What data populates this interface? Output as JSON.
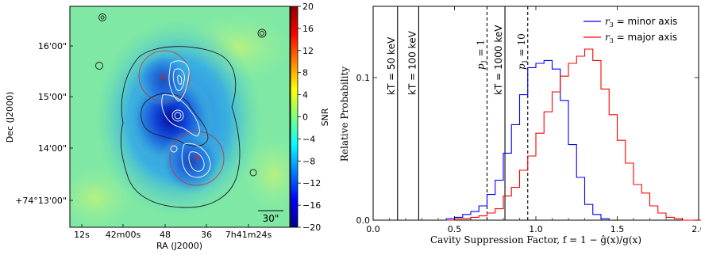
{
  "chart_data": [
    {
      "type": "heatmap",
      "colorbar_label": "SNR",
      "colorbar_ticks": [
        20,
        16,
        12,
        8,
        4,
        0,
        -4,
        -8,
        -12,
        -16,
        -20
      ],
      "colorbar_range": [
        -20,
        20
      ],
      "xlabel": "RA (J2000)",
      "ylabel": "Dec (J2000)",
      "x_ticks": [
        "12s",
        "42m00s",
        "48",
        "36",
        "7h41m24s"
      ],
      "y_ticks": [
        "16'00\"",
        "15'00\"",
        "14'00\"",
        "+74°13'00\""
      ],
      "scalebar_label": "30\"",
      "colors": {
        "low": "#00008f",
        "mid": "#7fff7f",
        "high": "#8f0000"
      }
    },
    {
      "type": "histogram",
      "xlabel": "Cavity Suppression Factor, f = 1 − ĝ(x)/g(x)",
      "ylabel": "Relative Probability",
      "xlim": [
        0.0,
        2.0
      ],
      "ylim": [
        0.0,
        0.15
      ],
      "x_ticks": [
        "0.0",
        "0.5",
        "1.0",
        "1.5",
        "2.0"
      ],
      "y_ticks": [
        "0.0",
        "0.1"
      ],
      "legend_position": "top-right",
      "bin_width": 0.05,
      "series": [
        {
          "name": "r3 = minor axis",
          "color": "#0000ff",
          "bin_start": 0.45,
          "values": [
            0.001,
            0.002,
            0.004,
            0.006,
            0.01,
            0.018,
            0.028,
            0.047,
            0.067,
            0.088,
            0.107,
            0.11,
            0.112,
            0.106,
            0.084,
            0.053,
            0.03,
            0.011,
            0.004,
            0.001
          ]
        },
        {
          "name": "r3 = major axis",
          "color": "#ff0000",
          "bin_start": 0.45,
          "values": [
            0.0,
            0.001,
            0.001,
            0.002,
            0.003,
            0.005,
            0.008,
            0.017,
            0.023,
            0.035,
            0.045,
            0.061,
            0.076,
            0.09,
            0.101,
            0.11,
            0.115,
            0.12,
            0.112,
            0.092,
            0.074,
            0.056,
            0.04,
            0.025,
            0.019,
            0.01,
            0.005,
            0.002,
            0.001,
            0.0,
            0.0,
            0.0
          ]
        }
      ],
      "reference_lines": [
        {
          "x": 0.15,
          "label": "kT = 50 keV",
          "style": "solid"
        },
        {
          "x": 0.28,
          "label": "kT = 100 keV",
          "style": "solid"
        },
        {
          "x": 0.7,
          "label": "p1 = 1",
          "style": "dashed"
        },
        {
          "x": 0.81,
          "label": "kT = 1000 keV",
          "style": "solid"
        },
        {
          "x": 0.95,
          "label": "p1 = 10",
          "style": "dashed"
        }
      ]
    }
  ]
}
